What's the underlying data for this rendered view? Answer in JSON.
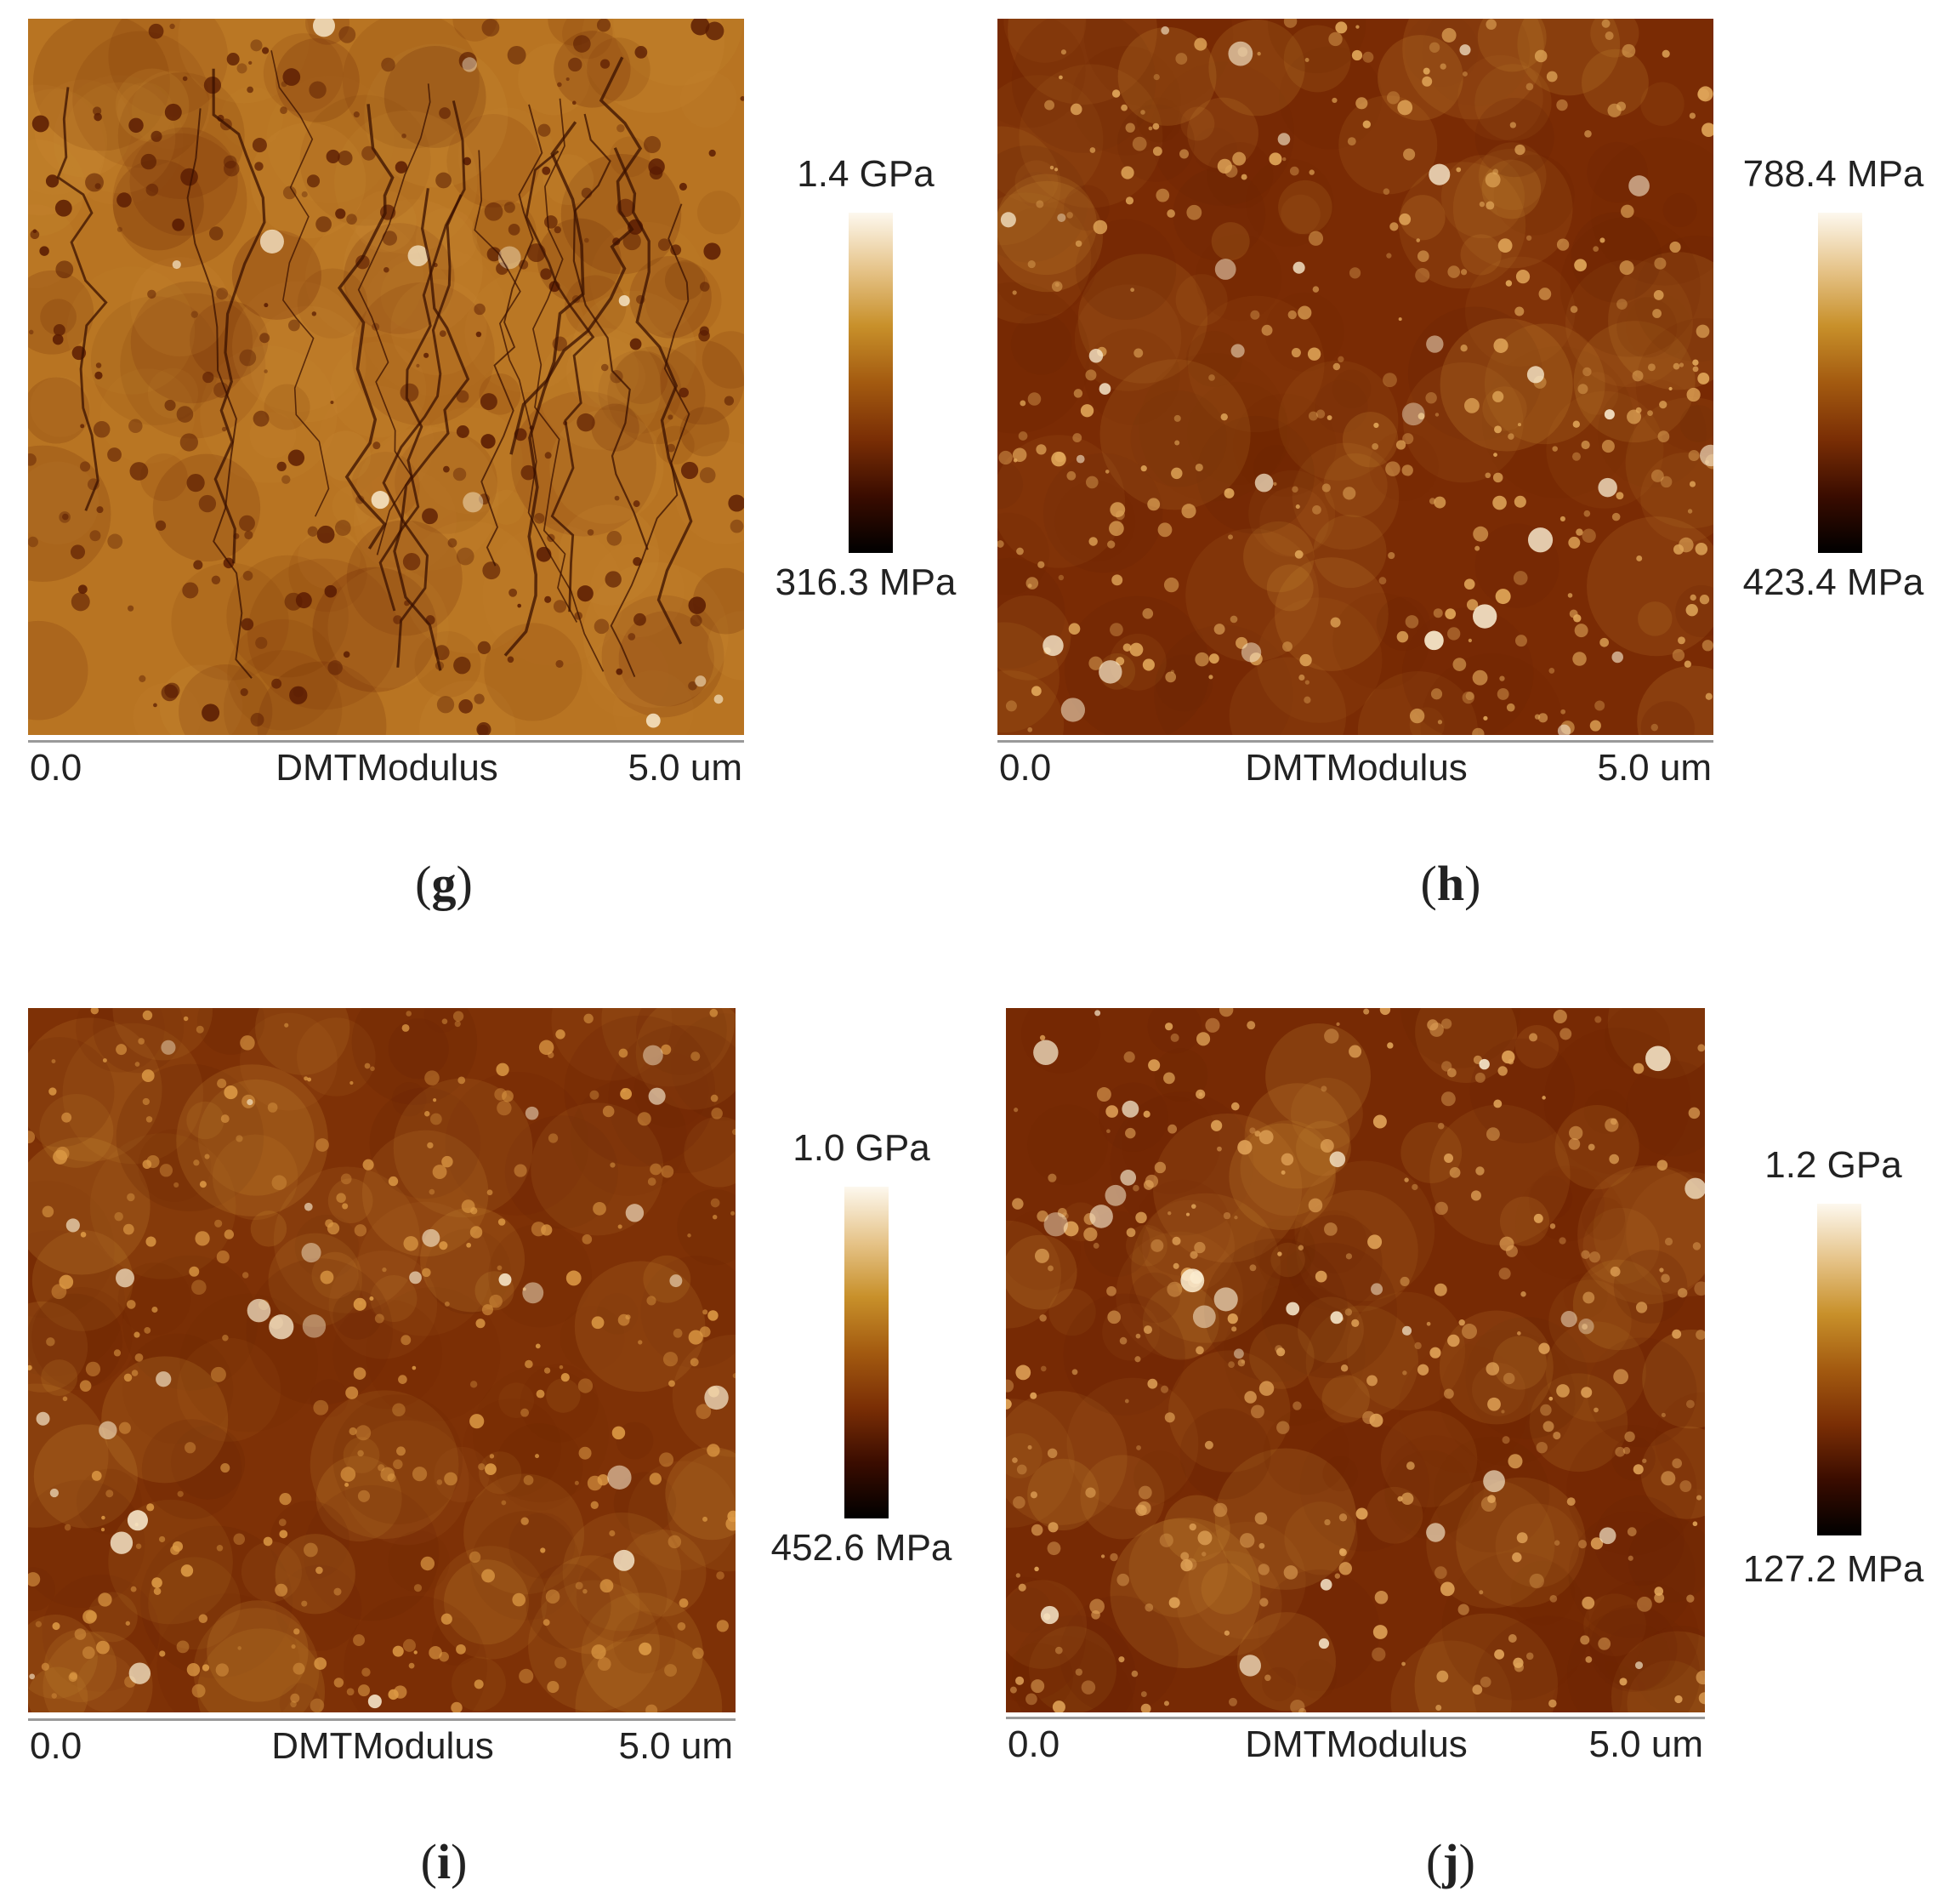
{
  "colormap": {
    "stops": [
      "#000000",
      "#3a0c00",
      "#7a2e05",
      "#a35a10",
      "#c8902a",
      "#e6c48a",
      "#fdf8ee"
    ]
  },
  "panels": [
    {
      "id": "g",
      "label_open": "(",
      "label_letter": "g",
      "label_close": ")",
      "channel": "DMTModulus",
      "scale_start": "0.0",
      "scale_end": "5.0 um",
      "colorbar_max": "1.4 GPa",
      "colorbar_min": "316.3 MPa",
      "base_color": "#b87422",
      "spot_color": "#5a1c02"
    },
    {
      "id": "h",
      "label_open": "(",
      "label_letter": "h",
      "label_close": ")",
      "channel": "DMTModulus",
      "scale_start": "0.0",
      "scale_end": "5.0 um",
      "colorbar_max": "788.4 MPa",
      "colorbar_min": "423.4 MPa",
      "base_color": "#7a2b04",
      "spot_color": "#e2a85a"
    },
    {
      "id": "i",
      "label_open": "(",
      "label_letter": "i",
      "label_close": ")",
      "channel": "DMTModulus",
      "scale_start": "0.0",
      "scale_end": "5.0 um",
      "colorbar_max": "1.0 GPa",
      "colorbar_min": "452.6 MPa",
      "base_color": "#7e3106",
      "spot_color": "#dd9a45"
    },
    {
      "id": "j",
      "label_open": "(",
      "label_letter": "j",
      "label_close": ")",
      "channel": "DMTModulus",
      "scale_start": "0.0",
      "scale_end": "5.0 um",
      "colorbar_max": "1.2 GPa",
      "colorbar_min": "127.2 MPa",
      "base_color": "#772a04",
      "spot_color": "#e3a65a"
    }
  ]
}
